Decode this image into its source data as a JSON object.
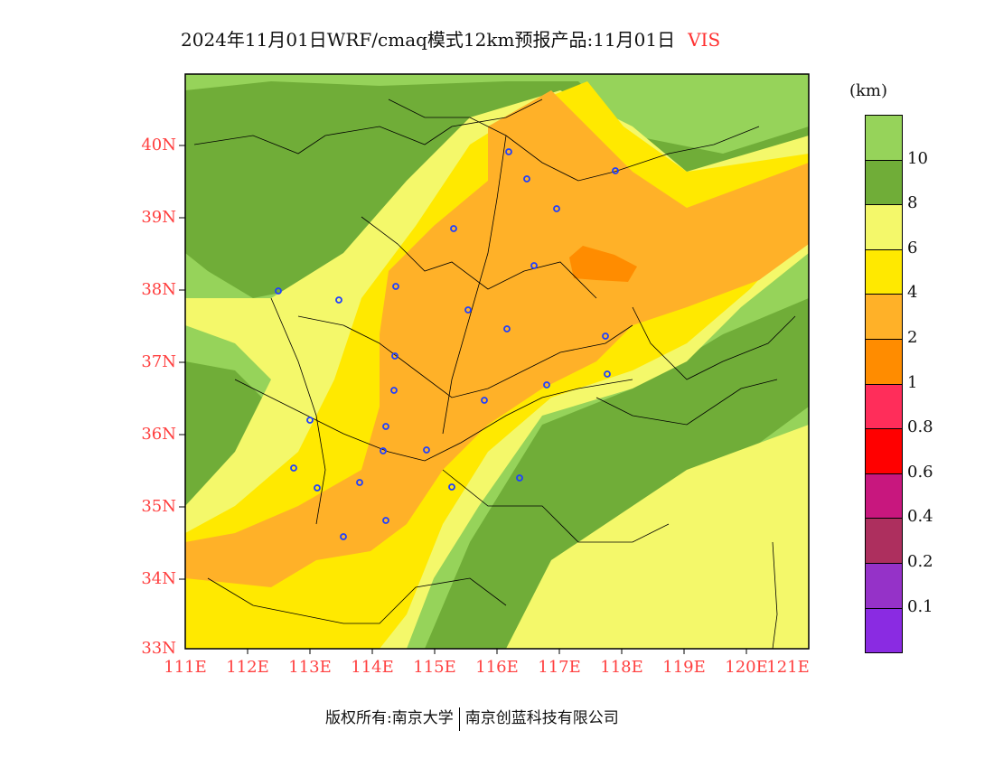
{
  "title": {
    "text": "2024年11月01日WRF/cmaq模式12km预报产品:11月01日",
    "variable": "VIS"
  },
  "map": {
    "lat_labels": [
      "40N",
      "39N",
      "38N",
      "37N",
      "36N",
      "35N",
      "34N",
      "33N"
    ],
    "lon_labels": [
      "111E",
      "112E",
      "113E",
      "114E",
      "115E",
      "116E",
      "117E",
      "118E",
      "119E",
      "120E",
      "121E"
    ]
  },
  "colorbar": {
    "unit": "(km)",
    "colors": [
      "#96d35a",
      "#70ad38",
      "#f4f86a",
      "#ffe900",
      "#ffb128",
      "#ff8c00",
      "#ff2d5a",
      "#ff0000",
      "#c8177e",
      "#ad2f5e",
      "#9532c8",
      "#8a2be2"
    ],
    "labels": [
      "10",
      "8",
      "6",
      "4",
      "2",
      "1",
      "0.8",
      "0.6",
      "0.4",
      "0.2",
      "0.1"
    ]
  },
  "footer": {
    "left": "版权所有:南京大学",
    "right": "南京创蓝科技有限公司"
  }
}
